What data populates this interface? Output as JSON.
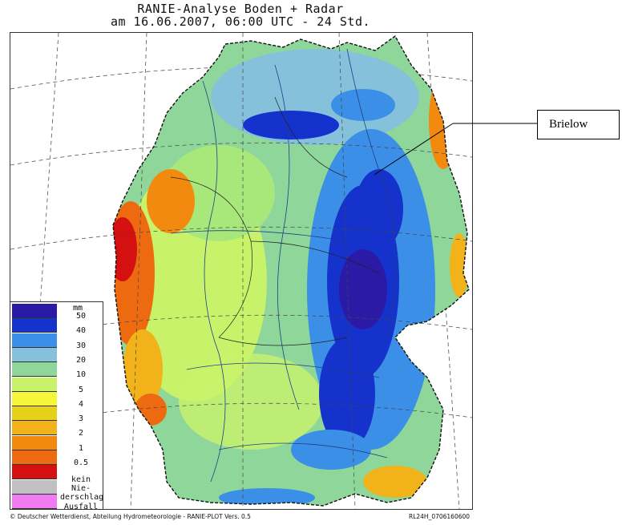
{
  "title": {
    "line1": "RANIE-Analyse Boden + Radar",
    "line2": "am 16.06.2007, 06:00 UTC - 24 Std."
  },
  "legend": {
    "unit": "mm",
    "items": [
      {
        "label": "50",
        "color": "#2a1aa6"
      },
      {
        "label": "40",
        "color": "#1533cc"
      },
      {
        "label": "30",
        "color": "#3b8fe6"
      },
      {
        "label": "20",
        "color": "#86c1dc"
      },
      {
        "label": "10",
        "color": "#8fd69a"
      },
      {
        "label": "5",
        "color": "#c8f26a"
      },
      {
        "label": "4",
        "color": "#f5f53a"
      },
      {
        "label": "3",
        "color": "#e6d01a"
      },
      {
        "label": "2",
        "color": "#f2b21a"
      },
      {
        "label": "1",
        "color": "#f28a10"
      },
      {
        "label": "0.5",
        "color": "#ee6a10"
      },
      {
        "label": "",
        "color": "#d41010"
      },
      {
        "label": "kein Nie-\nderschlag",
        "color": "#c0c0c0"
      },
      {
        "label": "Ausfall",
        "color": "#f07af0"
      }
    ]
  },
  "callout": {
    "label": "Brielow"
  },
  "footer": {
    "left": "© Deutscher Wetterdienst, Abteilung Hydrometeorologie - RANIE-PLOT Vers. 0.5",
    "right": "RL24H_0706160600"
  }
}
